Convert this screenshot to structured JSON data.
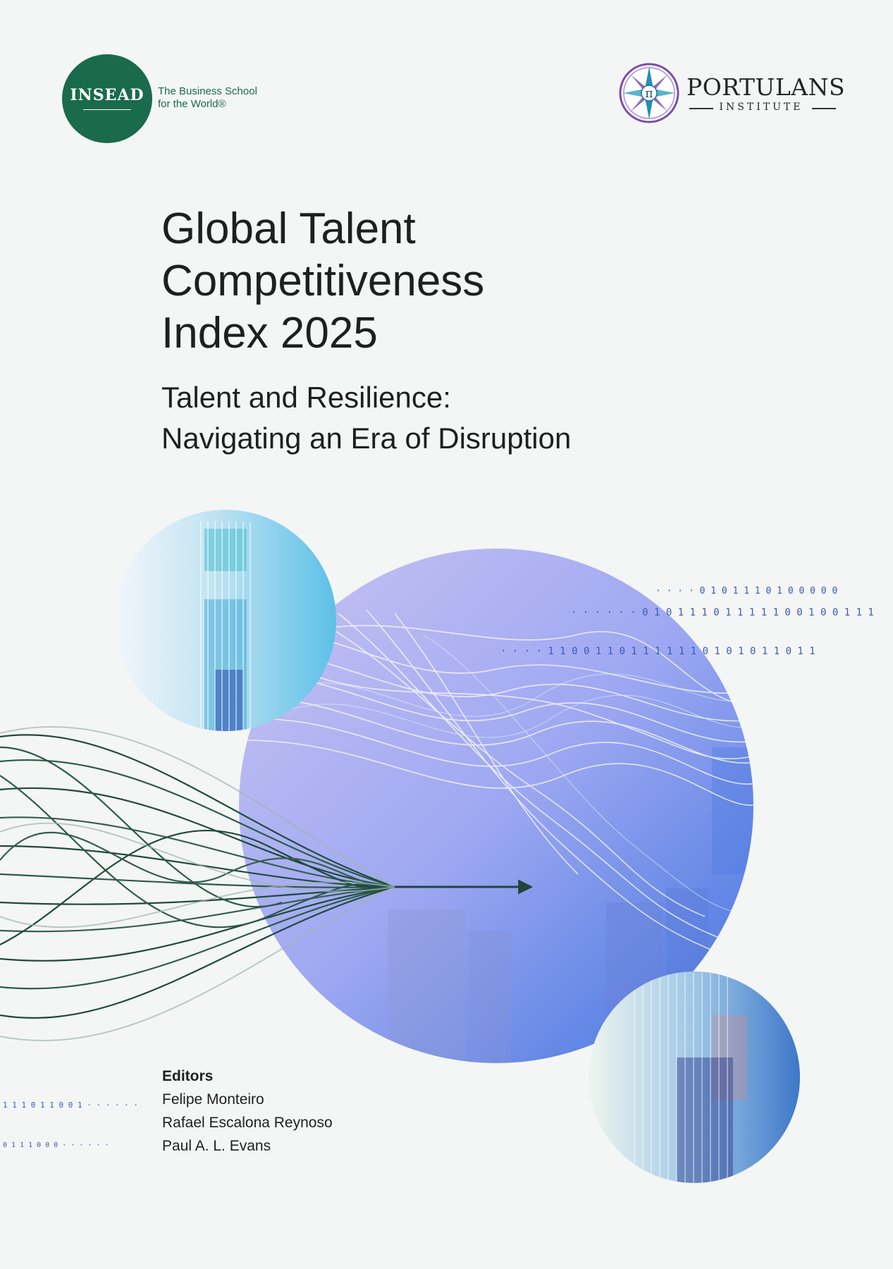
{
  "insead": {
    "wordmark": "INSEAD",
    "tagline_line1": "The Business School",
    "tagline_line2": "for the World®",
    "color": "#1a6a4d"
  },
  "portulans": {
    "name": "PORTULANS",
    "sub": "INSTITUTE",
    "emblem_glyph": "π",
    "emblem_icon": "compass-rose-icon"
  },
  "title": {
    "line1": "Global Talent",
    "line2": "Competitiveness",
    "line3": "Index 2025"
  },
  "subtitle": {
    "line1": "Talent and Resilience:",
    "line2": "Navigating an Era of Disruption"
  },
  "binary": {
    "row1": "·  ·  ·  ·  0  1  0  1  1  1  0  1  0  0  0  0  0",
    "row2": "· · · · · · 0 1 0 1 1 1 0 1 1 1 1 1 0 0 1 0 0 1 1 1",
    "row3": "· · · · 1 1 0 0 1 1 0 1 1 1 1 1 1 0 1 0 1 0 1 1 0 1 1",
    "row4": "1 1 1 0 1 1 0 0 1 · · · · · ·",
    "row5": "0 1 1 1 0 0 0 · · · · · ·"
  },
  "editors": {
    "heading": "Editors",
    "names": [
      "Felipe Monteiro",
      "Rafael Escalona Reynoso",
      "Paul A. L. Evans"
    ]
  },
  "colors": {
    "background": "#f4f6f5",
    "accent_green": "#1a6a4d",
    "accent_blue": "#4a7be0",
    "accent_violet": "#b7b8f0"
  }
}
